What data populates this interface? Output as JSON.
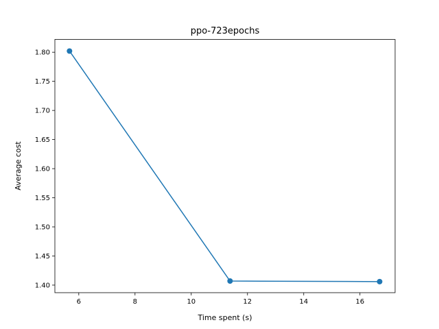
{
  "chart_data": {
    "type": "line",
    "title": "ppo-723epochs",
    "xlabel": "Time spent (s)",
    "ylabel": "Average cost",
    "xlim": [
      5.15,
      17.25
    ],
    "ylim": [
      1.387,
      1.822
    ],
    "xticks": [
      6,
      8,
      10,
      12,
      14,
      16
    ],
    "yticks": [
      1.4,
      1.45,
      1.5,
      1.55,
      1.6,
      1.65,
      1.7,
      1.75,
      1.8
    ],
    "ytick_labels": [
      "1.40",
      "1.45",
      "1.50",
      "1.55",
      "1.60",
      "1.65",
      "1.70",
      "1.75",
      "1.80"
    ],
    "grid": false,
    "series": [
      {
        "color": "#1f77b4",
        "marker": "circle",
        "x": [
          5.67,
          11.38,
          16.7
        ],
        "y": [
          1.802,
          1.407,
          1.406
        ]
      }
    ]
  }
}
